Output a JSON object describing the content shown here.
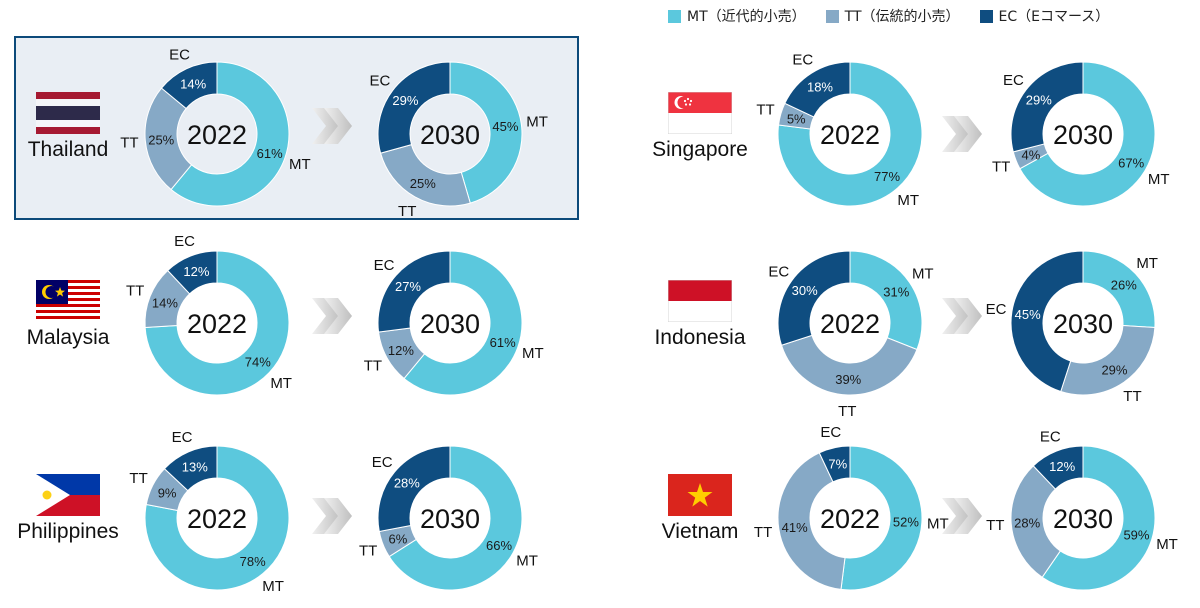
{
  "legend": {
    "mt": {
      "label": "MT（近代的小売）",
      "color": "#5bc8dd"
    },
    "tt": {
      "label": "TT（伝統的小売）",
      "color": "#86a9c6"
    },
    "ec": {
      "label": "EC（Eコマース）",
      "color": "#0f4d80"
    }
  },
  "segment_labels": {
    "mt": "MT",
    "tt": "TT",
    "ec": "EC"
  },
  "chart_data": [
    {
      "type": "pie",
      "country": "Thailand",
      "year": "2022",
      "values": {
        "mt": 61,
        "tt": 25,
        "ec": 14
      }
    },
    {
      "type": "pie",
      "country": "Thailand",
      "year": "2030",
      "values": {
        "mt": 45,
        "tt": 25,
        "ec": 29
      }
    },
    {
      "type": "pie",
      "country": "Malaysia",
      "year": "2022",
      "values": {
        "mt": 74,
        "tt": 14,
        "ec": 12
      }
    },
    {
      "type": "pie",
      "country": "Malaysia",
      "year": "2030",
      "values": {
        "mt": 61,
        "tt": 12,
        "ec": 27
      }
    },
    {
      "type": "pie",
      "country": "Philippines",
      "year": "2022",
      "values": {
        "mt": 78,
        "tt": 9,
        "ec": 13
      }
    },
    {
      "type": "pie",
      "country": "Philippines",
      "year": "2030",
      "values": {
        "mt": 66,
        "tt": 6,
        "ec": 28
      }
    },
    {
      "type": "pie",
      "country": "Singapore",
      "year": "2022",
      "values": {
        "mt": 77,
        "tt": 5,
        "ec": 18
      }
    },
    {
      "type": "pie",
      "country": "Singapore",
      "year": "2030",
      "values": {
        "mt": 67,
        "tt": 4,
        "ec": 29
      }
    },
    {
      "type": "pie",
      "country": "Indonesia",
      "year": "2022",
      "values": {
        "mt": 31,
        "tt": 39,
        "ec": 30
      }
    },
    {
      "type": "pie",
      "country": "Indonesia",
      "year": "2030",
      "values": {
        "mt": 26,
        "tt": 29,
        "ec": 45
      }
    },
    {
      "type": "pie",
      "country": "Vietnam",
      "year": "2022",
      "values": {
        "mt": 52,
        "tt": 41,
        "ec": 7
      }
    },
    {
      "type": "pie",
      "country": "Vietnam",
      "year": "2030",
      "values": {
        "mt": 59,
        "tt": 28,
        "ec": 12
      }
    }
  ],
  "countries": [
    "Thailand",
    "Malaysia",
    "Philippines",
    "Singapore",
    "Indonesia",
    "Vietnam"
  ]
}
